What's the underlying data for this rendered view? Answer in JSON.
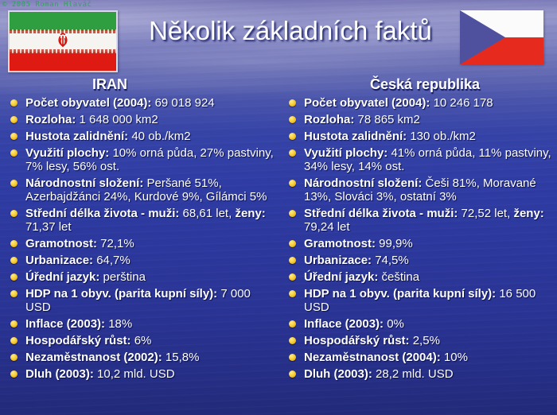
{
  "slide": {
    "copyright": "© 2005 Roman Hlaváč",
    "title": "Několik základních faktů"
  },
  "colors": {
    "background_sky": "#8285c2",
    "background_water": "#2c389d",
    "bullet_accent": "#f6c728",
    "text": "#ffffff",
    "copyright_green": "#2fa35a",
    "iran_flag_green": "#2f9e41",
    "iran_flag_red": "#df1a12",
    "czech_flag_red": "#e62b1e",
    "czech_flag_blue": "#4f519e"
  },
  "columns": [
    {
      "header": "IRAN",
      "items": [
        [
          {
            "b": true,
            "t": "Počet obyvatel (2004):"
          },
          {
            "b": false,
            "t": " 69 018 924"
          }
        ],
        [
          {
            "b": true,
            "t": "Rozloha:"
          },
          {
            "b": false,
            "t": " 1 648 000 km2"
          }
        ],
        [
          {
            "b": true,
            "t": "Hustota zalidnění:"
          },
          {
            "b": false,
            "t": " 40 ob./km2"
          }
        ],
        [
          {
            "b": true,
            "t": "Využití plochy:"
          },
          {
            "b": false,
            "t": " 10% orná půda, 27% pastviny, 7% lesy, 56% ost."
          }
        ],
        [
          {
            "b": true,
            "t": "Národnostní složení:"
          },
          {
            "b": false,
            "t": " Peršané 51%, Azerbajdžánci 24%, Kurdové 9%, Gílámci 5%"
          }
        ],
        [
          {
            "b": true,
            "t": "Střední délka života - muži:"
          },
          {
            "b": false,
            "t": " 68,61 let, "
          },
          {
            "b": true,
            "t": "ženy:"
          },
          {
            "b": false,
            "t": " 71,37 let"
          }
        ],
        [
          {
            "b": true,
            "t": "Gramotnost:"
          },
          {
            "b": false,
            "t": " 72,1%"
          }
        ],
        [
          {
            "b": true,
            "t": "Urbanizace:"
          },
          {
            "b": false,
            "t": " 64,7%"
          }
        ],
        [
          {
            "b": true,
            "t": "Úřední jazyk:"
          },
          {
            "b": false,
            "t": " perština"
          }
        ],
        [
          {
            "b": true,
            "t": "HDP na 1 obyv. (parita kupní síly):"
          },
          {
            "b": false,
            "t": " 7 000 USD"
          }
        ],
        [
          {
            "b": true,
            "t": "Inflace (2003):"
          },
          {
            "b": false,
            "t": " 18%"
          }
        ],
        [
          {
            "b": true,
            "t": "Hospodářský růst:"
          },
          {
            "b": false,
            "t": " 6%"
          }
        ],
        [
          {
            "b": true,
            "t": "Nezaměstnanost (2002):"
          },
          {
            "b": false,
            "t": " 15,8%"
          }
        ],
        [
          {
            "b": true,
            "t": "Dluh (2003):"
          },
          {
            "b": false,
            "t": " 10,2 mld. USD"
          }
        ]
      ]
    },
    {
      "header": "Česká republika",
      "items": [
        [
          {
            "b": true,
            "t": "Počet obyvatel (2004):"
          },
          {
            "b": false,
            "t": " 10 246 178"
          }
        ],
        [
          {
            "b": true,
            "t": "Rozloha:"
          },
          {
            "b": false,
            "t": " 78 865 km2"
          }
        ],
        [
          {
            "b": true,
            "t": "Hustota zalidnění:"
          },
          {
            "b": false,
            "t": " 130 ob./km2"
          }
        ],
        [
          {
            "b": true,
            "t": "Využití plochy:"
          },
          {
            "b": false,
            "t": " 41% orná půda, 11% pastviny, 34% lesy, 14% ost."
          }
        ],
        [
          {
            "b": true,
            "t": "Národnostní složení:"
          },
          {
            "b": false,
            "t": " Češi 81%, Moravané 13%, Slováci 3%, ostatní 3%"
          }
        ],
        [
          {
            "b": true,
            "t": "Střední délka života - muži:"
          },
          {
            "b": false,
            "t": " 72,52 let, "
          },
          {
            "b": true,
            "t": "ženy:"
          },
          {
            "b": false,
            "t": " 79,24 let"
          }
        ],
        [
          {
            "b": true,
            "t": "Gramotnost:"
          },
          {
            "b": false,
            "t": " 99,9%"
          }
        ],
        [
          {
            "b": true,
            "t": "Urbanizace:"
          },
          {
            "b": false,
            "t": " 74,5%"
          }
        ],
        [
          {
            "b": true,
            "t": "Úřední jazyk:"
          },
          {
            "b": false,
            "t": " čeština"
          }
        ],
        [
          {
            "b": true,
            "t": "HDP na 1 obyv. (parita kupní síly):"
          },
          {
            "b": false,
            "t": " 16 500 USD"
          }
        ],
        [
          {
            "b": true,
            "t": "Inflace (2003):"
          },
          {
            "b": false,
            "t": " 0%"
          }
        ],
        [
          {
            "b": true,
            "t": "Hospodářský růst:"
          },
          {
            "b": false,
            "t": " 2,5%"
          }
        ],
        [
          {
            "b": true,
            "t": "Nezaměstnanost (2004):"
          },
          {
            "b": false,
            "t": " 10%"
          }
        ],
        [
          {
            "b": true,
            "t": "Dluh (2003):"
          },
          {
            "b": false,
            "t": " 28,2 mld. USD"
          }
        ]
      ]
    }
  ]
}
